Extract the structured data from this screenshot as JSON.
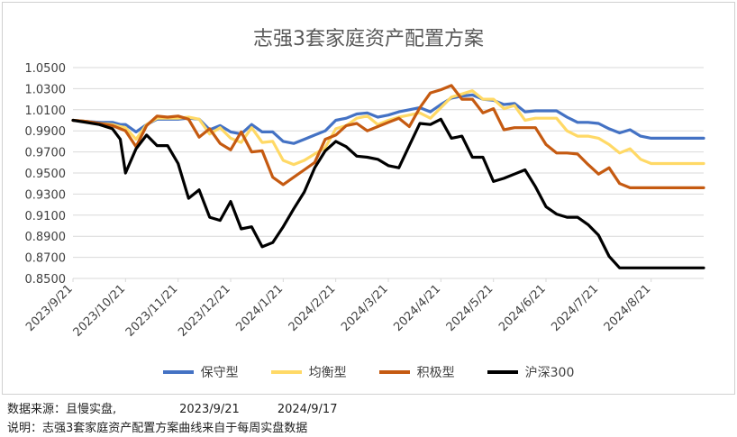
{
  "chart_data": {
    "type": "line",
    "title": "志强3套家庭资产配置方案",
    "ylim": [
      0.85,
      1.05
    ],
    "y_ticks": [
      "0.8500",
      "0.8700",
      "0.8900",
      "0.9100",
      "0.9300",
      "0.9500",
      "0.9700",
      "0.9900",
      "1.0100",
      "1.0300",
      "1.0500"
    ],
    "y_tick_values": [
      0.85,
      0.87,
      0.89,
      0.91,
      0.93,
      0.95,
      0.97,
      0.99,
      1.01,
      1.03,
      1.05
    ],
    "x_ticks": [
      "2023/9/21",
      "2023/10/21",
      "2023/11/21",
      "2023/12/21",
      "2024/1/21",
      "2024/2/21",
      "2024/3/21",
      "2024/4/21",
      "2024/5/21",
      "2024/6/21",
      "2024/7/21",
      "2024/8/21"
    ],
    "x_start": 0,
    "x_end": 12.0,
    "grid": true,
    "legend_position": "bottom",
    "series": [
      {
        "name": "保守型",
        "color": "#4472C4",
        "x": [
          0,
          0.25,
          0.5,
          0.75,
          0.9,
          1.0,
          1.2,
          1.4,
          1.6,
          1.8,
          2.0,
          2.2,
          2.4,
          2.6,
          2.8,
          3.0,
          3.2,
          3.4,
          3.6,
          3.8,
          4.0,
          4.2,
          4.4,
          4.6,
          4.8,
          5.0,
          5.2,
          5.4,
          5.6,
          5.8,
          6.0,
          6.2,
          6.4,
          6.6,
          6.8,
          7.0,
          7.2,
          7.4,
          7.6,
          7.8,
          8.0,
          8.2,
          8.4,
          8.6,
          8.8,
          9.0,
          9.2,
          9.4,
          9.6,
          9.8,
          10.0,
          10.2,
          10.4,
          10.6,
          10.8,
          11.0,
          11.2,
          11.4,
          11.6,
          11.8,
          12.0
        ],
        "values": [
          1.0,
          0.999,
          0.998,
          0.998,
          0.996,
          0.996,
          0.989,
          0.996,
          1.001,
          1.001,
          1.001,
          1.002,
          1.001,
          0.991,
          0.995,
          0.989,
          0.987,
          0.996,
          0.989,
          0.989,
          0.98,
          0.978,
          0.982,
          0.986,
          0.99,
          1.0,
          1.002,
          1.006,
          1.007,
          1.003,
          1.005,
          1.008,
          1.01,
          1.012,
          1.008,
          1.015,
          1.021,
          1.023,
          1.024,
          1.02,
          1.019,
          1.015,
          1.016,
          1.008,
          1.009,
          1.009,
          1.009,
          1.003,
          0.998,
          0.998,
          0.997,
          0.992,
          0.988,
          0.991,
          0.985,
          0.983,
          0.983,
          0.983,
          0.983,
          0.983,
          0.983
        ]
      },
      {
        "name": "均衡型",
        "color": "#FFD966",
        "x": [
          0,
          0.25,
          0.5,
          0.75,
          0.9,
          1.0,
          1.2,
          1.4,
          1.6,
          1.8,
          2.0,
          2.2,
          2.4,
          2.6,
          2.8,
          3.0,
          3.2,
          3.4,
          3.6,
          3.8,
          4.0,
          4.2,
          4.4,
          4.6,
          4.8,
          5.0,
          5.2,
          5.4,
          5.6,
          5.8,
          6.0,
          6.2,
          6.4,
          6.6,
          6.8,
          7.0,
          7.2,
          7.4,
          7.6,
          7.8,
          8.0,
          8.2,
          8.4,
          8.6,
          8.8,
          9.0,
          9.2,
          9.4,
          9.6,
          9.8,
          10.0,
          10.2,
          10.4,
          10.6,
          10.8,
          11.0,
          11.2,
          11.4,
          11.6,
          11.8,
          12.0
        ],
        "values": [
          1.0,
          0.999,
          0.997,
          0.996,
          0.994,
          0.993,
          0.982,
          0.996,
          1.002,
          1.002,
          1.002,
          1.003,
          1.001,
          0.987,
          0.993,
          0.983,
          0.979,
          0.993,
          0.979,
          0.98,
          0.962,
          0.958,
          0.962,
          0.968,
          0.974,
          0.992,
          0.995,
          1.002,
          1.004,
          0.996,
          1.0,
          1.003,
          1.005,
          1.007,
          1.002,
          1.012,
          1.022,
          1.025,
          1.028,
          1.02,
          1.02,
          1.011,
          1.014,
          1.0,
          1.002,
          1.002,
          1.002,
          0.99,
          0.985,
          0.985,
          0.983,
          0.977,
          0.969,
          0.973,
          0.963,
          0.959,
          0.959,
          0.959,
          0.959,
          0.959,
          0.959
        ]
      },
      {
        "name": "积极型",
        "color": "#C55A11",
        "x": [
          0,
          0.25,
          0.5,
          0.75,
          0.9,
          1.0,
          1.2,
          1.4,
          1.6,
          1.8,
          2.0,
          2.2,
          2.4,
          2.6,
          2.8,
          3.0,
          3.2,
          3.4,
          3.6,
          3.8,
          4.0,
          4.2,
          4.4,
          4.6,
          4.8,
          5.0,
          5.2,
          5.4,
          5.6,
          5.8,
          6.0,
          6.2,
          6.4,
          6.6,
          6.8,
          7.0,
          7.2,
          7.4,
          7.6,
          7.8,
          8.0,
          8.2,
          8.4,
          8.6,
          8.8,
          9.0,
          9.2,
          9.4,
          9.6,
          9.8,
          10.0,
          10.2,
          10.4,
          10.6,
          10.8,
          11.0,
          11.2,
          11.4,
          11.6,
          11.8,
          12.0
        ],
        "values": [
          1.0,
          0.999,
          0.997,
          0.995,
          0.992,
          0.99,
          0.975,
          0.995,
          1.004,
          1.003,
          1.004,
          1.001,
          0.984,
          0.992,
          0.978,
          0.972,
          0.989,
          0.97,
          0.971,
          0.946,
          0.939,
          0.946,
          0.953,
          0.96,
          0.982,
          0.986,
          0.995,
          0.997,
          0.99,
          0.994,
          0.998,
          1.002,
          0.994,
          1.012,
          1.026,
          1.029,
          1.033,
          1.02,
          1.02,
          1.007,
          1.011,
          0.991,
          0.993,
          0.993,
          0.993,
          0.977,
          0.969,
          0.969,
          0.968,
          0.958,
          0.949,
          0.955,
          0.94,
          0.936,
          0.936,
          0.936,
          0.936,
          0.936,
          0.936,
          0.936,
          0.936
        ]
      },
      {
        "name": "沪深300",
        "color": "#000000",
        "x": [
          0,
          0.25,
          0.5,
          0.75,
          0.9,
          1.0,
          1.2,
          1.4,
          1.6,
          1.8,
          2.0,
          2.2,
          2.4,
          2.6,
          2.8,
          3.0,
          3.2,
          3.4,
          3.6,
          3.8,
          4.0,
          4.2,
          4.4,
          4.6,
          4.8,
          5.0,
          5.2,
          5.4,
          5.6,
          5.8,
          6.0,
          6.2,
          6.4,
          6.6,
          6.8,
          7.0,
          7.2,
          7.4,
          7.6,
          7.8,
          8.0,
          8.2,
          8.4,
          8.6,
          8.8,
          9.0,
          9.2,
          9.4,
          9.6,
          9.8,
          10.0,
          10.2,
          10.4,
          10.6,
          10.8,
          11.0,
          11.2,
          11.4,
          11.6,
          11.8,
          12.0
        ],
        "values": [
          1.0,
          0.998,
          0.996,
          0.992,
          0.982,
          0.95,
          0.973,
          0.986,
          0.976,
          0.976,
          0.959,
          0.926,
          0.934,
          0.908,
          0.905,
          0.923,
          0.897,
          0.899,
          0.88,
          0.884,
          0.899,
          0.916,
          0.932,
          0.955,
          0.971,
          0.98,
          0.975,
          0.966,
          0.965,
          0.963,
          0.957,
          0.955,
          0.976,
          0.997,
          0.996,
          1.001,
          0.983,
          0.985,
          0.965,
          0.965,
          0.942,
          0.945,
          0.949,
          0.953,
          0.937,
          0.918,
          0.911,
          0.908,
          0.908,
          0.901,
          0.891,
          0.871,
          0.86,
          0.86,
          0.86,
          0.86,
          0.86,
          0.86,
          0.86,
          0.86,
          0.86
        ]
      }
    ]
  },
  "footer": {
    "source_label": "数据来源：且慢实盘,",
    "date_start": "2023/9/21",
    "date_end": "2024/9/17",
    "note": "说明：志强3套家庭资产配置方案曲线来自于每周实盘数据"
  }
}
